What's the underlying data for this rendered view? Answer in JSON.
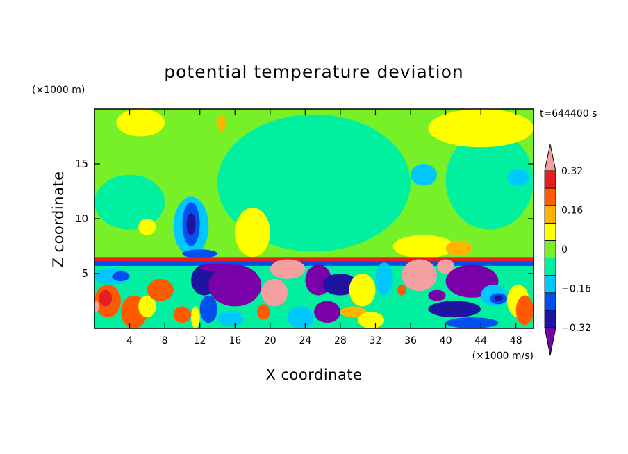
{
  "chart_data": {
    "type": "heatmap",
    "title": "potential temperature deviation",
    "xlabel": "X coordinate",
    "ylabel": "Z coordinate",
    "x_unit_label": "(×1000 m/s)",
    "y_unit_label": "(×1000 m)",
    "time_label": "t=644400 s",
    "xlim": [
      0,
      50
    ],
    "ylim": [
      0,
      20
    ],
    "x_ticks": [
      "4",
      "8",
      "12",
      "16",
      "20",
      "24",
      "28",
      "32",
      "36",
      "40",
      "44",
      "48"
    ],
    "x_tick_values": [
      4,
      8,
      12,
      16,
      20,
      24,
      28,
      32,
      36,
      40,
      44,
      48
    ],
    "y_ticks": [
      "5",
      "10",
      "15"
    ],
    "y_tick_values": [
      5,
      10,
      15
    ],
    "colorbar": {
      "levels": [
        -0.4,
        -0.32,
        -0.24,
        -0.16,
        -0.08,
        0,
        0.08,
        0.16,
        0.24,
        0.32,
        0.4
      ],
      "colors": [
        "#7a00a8",
        "#1e14a0",
        "#0050f0",
        "#00c8ff",
        "#00f0a0",
        "#78f028",
        "#ffff00",
        "#ffb400",
        "#ff5a00",
        "#e61e1e",
        "#f5a0a0"
      ],
      "tick_labels": [
        "0.32",
        "0.16",
        "0",
        "−0.16",
        "−0.32"
      ],
      "tick_values": [
        0.32,
        0.16,
        0,
        -0.16,
        -0.32
      ],
      "extend": "both"
    },
    "regions_description": "upper layer (z > 6.5 km) mostly near zero with positive patches near x 2-8, 14-19 and 34-40; negative plume near x 9-13; lower layer (z < 6.5 km) strongly perturbed with negative cores near x 11-19, 23-28 and 40-46 and positive cores near x 19-24 and 34-40"
  }
}
